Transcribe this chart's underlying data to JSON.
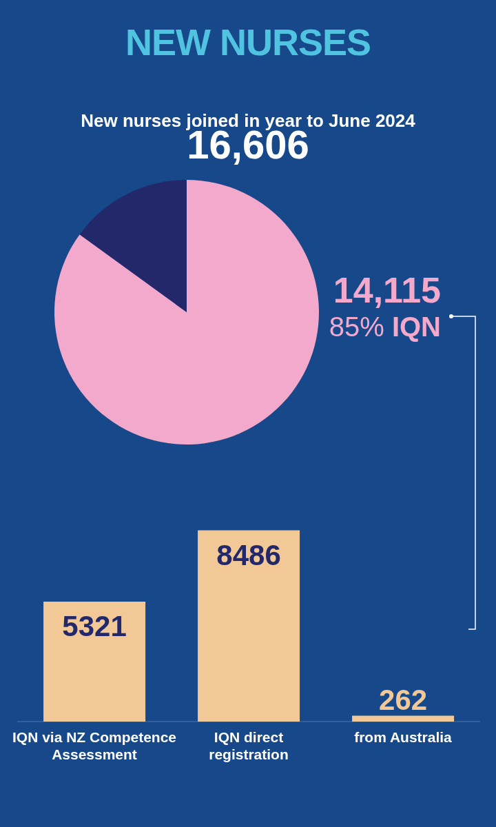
{
  "chart_data": [
    {
      "type": "pie",
      "title": "NEW NURSES",
      "subtitle": "New nurses joined in year to June 2024",
      "annotations": [
        "16,606",
        "14,115"
      ],
      "categories": [
        "IQN",
        null
      ],
      "values": [
        85,
        15
      ],
      "colors": [
        "#f2a9cc",
        "#23286b"
      ],
      "value_labels": [
        "85%",
        null
      ]
    },
    {
      "type": "bar",
      "categories": [
        "IQN via NZ Competence Assessment",
        "IQN direct registration",
        "from Australia"
      ],
      "values": [
        5321,
        8486,
        262
      ],
      "color": "#f2c996",
      "data_labels": true,
      "tick_labels": "x"
    }
  ]
}
